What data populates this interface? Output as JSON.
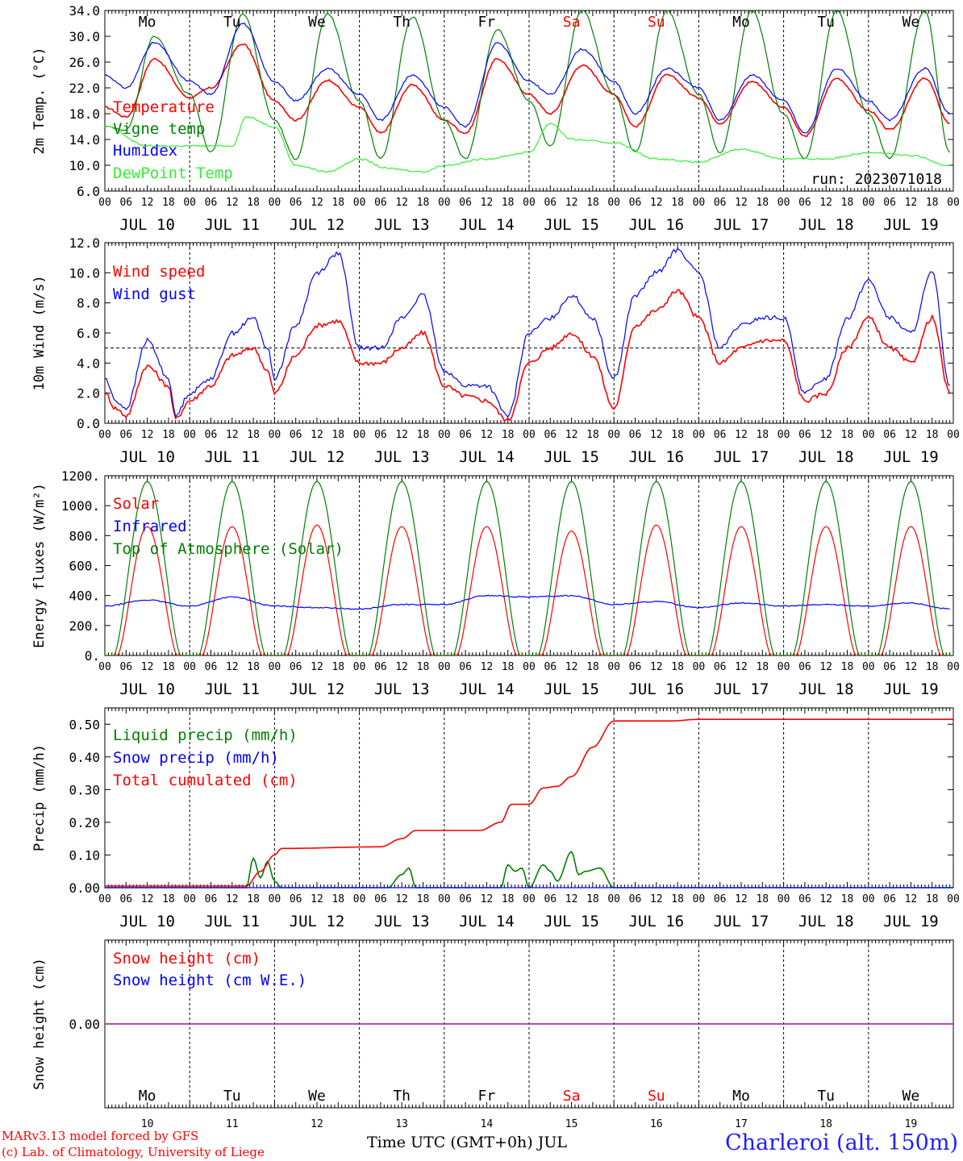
{
  "colors": {
    "red": "#ff0000",
    "green": "#008000",
    "blue": "#0000ff",
    "light_green": "#33ee33",
    "purple": "#8a2be2",
    "weekend": "#ff0000",
    "black": "#000000"
  },
  "station": "Charleroi (alt. 150m)",
  "run_label": "run: 2023071018",
  "credit_lines": [
    "MARv3.13 model forced by GFS",
    "(c) Lab. of Climatology, University of Liege"
  ],
  "time_axis_title": "Time UTC (GMT+0h) JUL",
  "hour_ticks": [
    "00",
    "06",
    "12",
    "18"
  ],
  "date_labels": [
    "JUL 10",
    "JUL 11",
    "JUL 12",
    "JUL 13",
    "JUL 14",
    "JUL 15",
    "JUL 16",
    "JUL 17",
    "JUL 18",
    "JUL 19"
  ],
  "bottom_day_numbers": [
    "10",
    "11",
    "12",
    "13",
    "14",
    "15",
    "16",
    "17",
    "18",
    "19"
  ],
  "weekdays": [
    {
      "label": "Mo",
      "weekend": false
    },
    {
      "label": "Tu",
      "weekend": false
    },
    {
      "label": "We",
      "weekend": false
    },
    {
      "label": "Th",
      "weekend": false
    },
    {
      "label": "Fr",
      "weekend": false
    },
    {
      "label": "Sa",
      "weekend": true
    },
    {
      "label": "Su",
      "weekend": true
    },
    {
      "label": "Mo",
      "weekend": false
    },
    {
      "label": "Tu",
      "weekend": false
    },
    {
      "label": "We",
      "weekend": false
    }
  ],
  "chart_data": [
    {
      "type": "line",
      "ylabel": "2m Temp. (°C)",
      "x_unit": "hours since JUL 10 00 UTC",
      "ylim": [
        6,
        34
      ],
      "yticks": [
        "34.0",
        "30.0",
        "26.0",
        "22.0",
        "18.0",
        "14.0",
        "10.0",
        "6.0"
      ],
      "ytick_values": [
        34,
        30,
        26,
        22,
        18,
        14,
        10,
        6
      ],
      "grid": "vertical dashed at day boundaries",
      "legend_position": "left",
      "series": [
        {
          "name": "Temperature",
          "color": "#ff0000",
          "x": [
            0,
            6,
            14,
            24,
            30,
            39,
            48,
            54,
            63,
            72,
            78,
            87,
            96,
            102,
            111,
            120,
            126,
            135,
            144,
            150,
            159,
            168,
            174,
            183,
            192,
            198,
            207,
            216,
            222,
            232,
            239
          ],
          "y": [
            19,
            17.5,
            26.5,
            20.5,
            22,
            28.8,
            20,
            17,
            23.2,
            19,
            15,
            22.5,
            17,
            15,
            26.5,
            21,
            18,
            25.5,
            21,
            16,
            24,
            20.5,
            16.5,
            23,
            19,
            14.5,
            23.5,
            18.5,
            15.5,
            23.5,
            16.5
          ]
        },
        {
          "name": "Vigne temp",
          "color": "#008000",
          "x": [
            0,
            6,
            14,
            24,
            30,
            39,
            48,
            54,
            63,
            72,
            78,
            87,
            96,
            102,
            111,
            120,
            126,
            135,
            144,
            150,
            159,
            168,
            174,
            183,
            192,
            198,
            207,
            216,
            222,
            232,
            239
          ],
          "y": [
            16,
            15.5,
            30,
            21,
            12,
            33.5,
            17,
            11,
            33.5,
            20,
            11,
            33,
            17,
            11,
            31,
            20,
            13,
            34,
            21,
            12,
            34,
            21,
            12,
            34,
            18,
            11,
            34,
            18,
            11,
            34,
            12
          ]
        },
        {
          "name": "Humidex",
          "color": "#0000ff",
          "x": [
            0,
            6,
            14,
            24,
            30,
            39,
            48,
            54,
            63,
            72,
            78,
            87,
            96,
            102,
            111,
            120,
            126,
            135,
            144,
            150,
            159,
            168,
            174,
            183,
            192,
            198,
            207,
            216,
            222,
            232,
            239
          ],
          "y": [
            24,
            22,
            29,
            23,
            21,
            32,
            23,
            20,
            25,
            21,
            17,
            24,
            19,
            16,
            29,
            23,
            21,
            28,
            23,
            18,
            25,
            22,
            17,
            24,
            20,
            15,
            25,
            20,
            17,
            25,
            18
          ]
        },
        {
          "name": "DewPoint Temp",
          "color": "#33ee33",
          "x": [
            0,
            12,
            24,
            36,
            40,
            48,
            54,
            63,
            72,
            80,
            90,
            96,
            108,
            120,
            126,
            132,
            144,
            156,
            168,
            180,
            192,
            204,
            216,
            228,
            239
          ],
          "y": [
            16,
            13,
            13,
            13,
            17.5,
            16,
            10,
            9,
            11,
            9.5,
            9,
            10,
            11,
            12,
            16.5,
            14,
            13.5,
            11,
            10.5,
            12.5,
            11,
            11,
            12,
            11.5,
            10
          ]
        }
      ]
    },
    {
      "type": "line",
      "ylabel": "10m Wind (m/s)",
      "x_unit": "hours since JUL 10 00 UTC",
      "ylim": [
        0,
        12
      ],
      "yticks": [
        "12.0",
        "10.0",
        "8.0",
        "6.0",
        "4.0",
        "2.0",
        "0.0"
      ],
      "ytick_values": [
        12,
        10,
        8,
        6,
        4,
        2,
        0
      ],
      "reference_line": 5,
      "legend_position": "left",
      "series": [
        {
          "name": "Wind speed",
          "color": "#ff0000",
          "x": [
            0,
            3,
            6,
            12,
            18,
            20,
            24,
            30,
            36,
            42,
            46,
            48,
            54,
            60,
            66,
            72,
            78,
            84,
            90,
            96,
            102,
            108,
            114,
            120,
            126,
            132,
            138,
            144,
            150,
            156,
            162,
            168,
            174,
            180,
            186,
            192,
            198,
            204,
            210,
            216,
            222,
            228,
            234,
            239
          ],
          "y": [
            2,
            1,
            0.5,
            3.8,
            2.5,
            0.3,
            1.5,
            2.5,
            4.5,
            5,
            3.5,
            2,
            4.5,
            6.5,
            6.8,
            4,
            4,
            5,
            6,
            2.5,
            1.8,
            1.5,
            0.2,
            4,
            5,
            6,
            4.5,
            1,
            6.5,
            7.5,
            8.8,
            7,
            4,
            5,
            5.5,
            5.5,
            1.5,
            2,
            5,
            7,
            5,
            4,
            7,
            2
          ]
        },
        {
          "name": "Wind gust",
          "color": "#0000ff",
          "x": [
            0,
            3,
            6,
            12,
            18,
            20,
            24,
            30,
            36,
            42,
            46,
            48,
            54,
            60,
            66,
            72,
            78,
            84,
            90,
            96,
            102,
            108,
            114,
            120,
            126,
            132,
            138,
            144,
            150,
            156,
            162,
            168,
            174,
            180,
            186,
            192,
            198,
            204,
            210,
            216,
            222,
            228,
            234,
            239
          ],
          "y": [
            3,
            1.5,
            1,
            5.5,
            3,
            0.5,
            2,
            3,
            6,
            7,
            5,
            3,
            6.5,
            10,
            11.3,
            5,
            5,
            7,
            8.5,
            3.5,
            2.5,
            2.5,
            0.5,
            6,
            7,
            8.5,
            7,
            3,
            8.5,
            10,
            11.5,
            10,
            5,
            6.5,
            7,
            7,
            2,
            3,
            7,
            9.5,
            7,
            6,
            10,
            2.5
          ]
        }
      ]
    },
    {
      "type": "line",
      "ylabel": "Energy fluxes (W/m²)",
      "x_unit": "hours since JUL 10 00 UTC",
      "ylim": [
        0,
        1200
      ],
      "yticks": [
        "1200.",
        "1000.",
        "800.",
        "600.",
        "400.",
        "200.",
        "0."
      ],
      "ytick_values": [
        1200,
        1000,
        800,
        600,
        400,
        200,
        0
      ],
      "legend_position": "left",
      "series": [
        {
          "name": "Solar",
          "color": "#ff0000",
          "daily_peaks": [
            860,
            860,
            870,
            860,
            860,
            830,
            870,
            860,
            860,
            860
          ],
          "daily_window_hours": [
            3.5,
            20.5
          ]
        },
        {
          "name": "Infrared",
          "color": "#0000ff",
          "x": [
            0,
            12,
            24,
            36,
            48,
            60,
            72,
            84,
            96,
            108,
            120,
            132,
            144,
            156,
            168,
            180,
            192,
            204,
            216,
            228,
            239
          ],
          "y": [
            330,
            370,
            330,
            390,
            330,
            320,
            310,
            340,
            340,
            400,
            390,
            400,
            340,
            360,
            320,
            350,
            330,
            340,
            330,
            350,
            310
          ]
        },
        {
          "name": "Top of Atmosphere (Solar)",
          "color": "#008000",
          "daily_peak": 1160,
          "daily_window_hours": [
            2.5,
            21.5
          ]
        }
      ]
    },
    {
      "type": "line",
      "ylabel": "Precip (mm/h)",
      "x_unit": "hours since JUL 10 00 UTC",
      "ylim": [
        0,
        0.55
      ],
      "yticks": [
        "0.50",
        "0.40",
        "0.30",
        "0.20",
        "0.10",
        "0.00"
      ],
      "ytick_values": [
        0.5,
        0.4,
        0.3,
        0.2,
        0.1,
        0
      ],
      "legend_position": "left",
      "series": [
        {
          "name": "Liquid precip (mm/h)",
          "color": "#008000",
          "x": [
            0,
            40,
            42,
            44,
            46,
            48,
            50,
            80,
            84,
            86,
            88,
            100,
            112,
            114,
            116,
            118,
            120,
            124,
            126,
            128,
            132,
            134,
            136,
            140,
            144,
            168,
            240
          ],
          "y": [
            0,
            0,
            0.09,
            0.03,
            0.08,
            0.02,
            0,
            0,
            0.04,
            0.06,
            0,
            0,
            0,
            0.07,
            0.05,
            0.06,
            0,
            0.07,
            0.05,
            0.02,
            0.11,
            0.04,
            0.05,
            0.06,
            0,
            0,
            0
          ]
        },
        {
          "name": "Snow precip (mm/h)",
          "color": "#0000ff",
          "x": [
            0,
            240
          ],
          "y": [
            0,
            0
          ]
        },
        {
          "name": "Total cumulated (cm)",
          "color": "#ff0000",
          "x": [
            0,
            40,
            44,
            48,
            50,
            78,
            84,
            88,
            106,
            112,
            115,
            120,
            124,
            128,
            132,
            138,
            144,
            160,
            168,
            240
          ],
          "y": [
            0.005,
            0.005,
            0.05,
            0.1,
            0.12,
            0.125,
            0.15,
            0.175,
            0.175,
            0.2,
            0.255,
            0.255,
            0.305,
            0.31,
            0.34,
            0.43,
            0.51,
            0.51,
            0.515,
            0.515
          ]
        }
      ]
    },
    {
      "type": "line",
      "ylabel": "Snow height (cm)",
      "x_unit": "hours since JUL 10 00 UTC",
      "ylim": [
        -1,
        1
      ],
      "yticks": [
        "0.00"
      ],
      "ytick_values": [
        0
      ],
      "legend_position": "left",
      "series": [
        {
          "name": "Snow height (cm)",
          "color": "#ff0000",
          "x": [
            0,
            240
          ],
          "y": [
            0,
            0
          ]
        },
        {
          "name": "Snow height (cm W.E.)",
          "color": "#0000ff",
          "x": [
            0,
            240
          ],
          "y": [
            0,
            0
          ]
        }
      ]
    }
  ]
}
